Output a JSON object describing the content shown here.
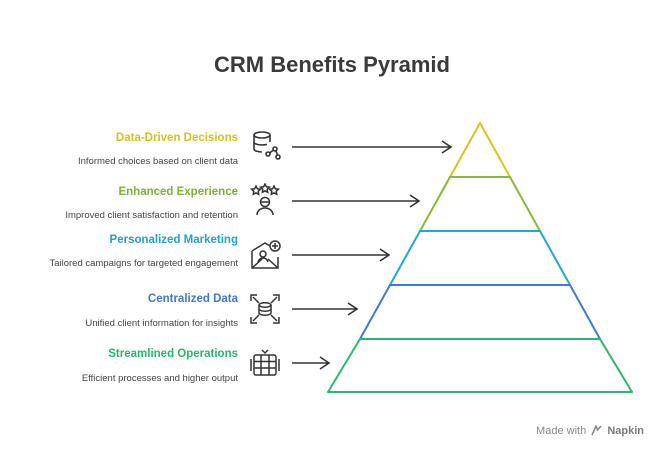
{
  "title": "CRM Benefits Pyramid",
  "levels": [
    {
      "title": "Data-Driven Decisions",
      "desc": "Informed choices based on client data",
      "color": "#d8c81e",
      "icon": "database-network-icon"
    },
    {
      "title": "Enhanced Experience",
      "desc": "Improved client satisfaction and retention",
      "color": "#8ab83a",
      "icon": "user-stars-icon"
    },
    {
      "title": "Personalized Marketing",
      "desc": "Tailored campaigns for targeted engagement",
      "color": "#22a9cf",
      "icon": "personalized-mail-icon"
    },
    {
      "title": "Centralized Data",
      "desc": "Unified client information for insights",
      "color": "#4179d9",
      "icon": "centralized-database-icon"
    },
    {
      "title": "Streamlined Operations",
      "desc": "Efficient processes and higher output",
      "color": "#2db872",
      "icon": "streamlined-server-icon"
    }
  ],
  "footer": {
    "prefix": "Made with",
    "brand": "Napkin"
  }
}
